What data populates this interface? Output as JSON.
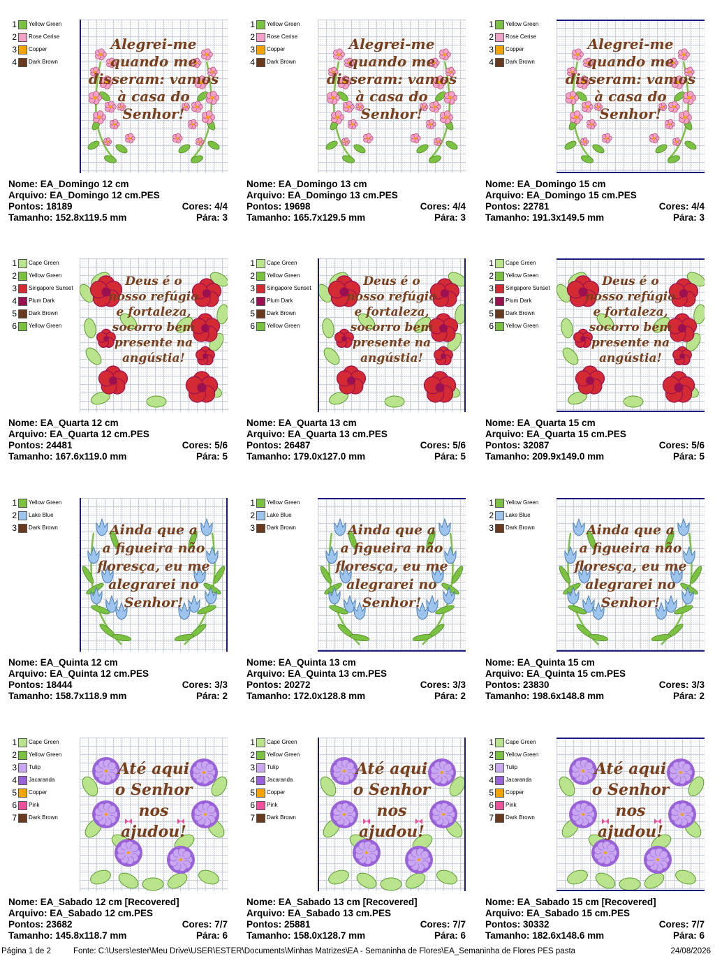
{
  "colors": {
    "Yellow Green": "#7cc242",
    "Rose Cerise": "#f2a2c6",
    "Copper": "#f5a300",
    "Dark Brown": "#6a3a1f",
    "Cape Green": "#b9e38d",
    "Singapore Sunset": "#d42a34",
    "Plum Dark": "#9b1050",
    "Lake Blue": "#9cc4ec",
    "Tulip": "#c9a6f0",
    "Jacaranda": "#9a62d9",
    "Pink": "#f0509c"
  },
  "labels": {
    "nome": "Nome: ",
    "arquivo": "Arquivo: ",
    "pontos": "Pontos: ",
    "tamanho": "Tamanho: ",
    "cores": "Cores: ",
    "para": "Pára: "
  },
  "rows": [
    {
      "theme": "roses",
      "verse": [
        "Alegrei-me",
        "quando me",
        "disseram: vamos",
        "à casa do",
        "Senhor!"
      ],
      "palette": [
        "Yellow Green",
        "Rose Cerise",
        "Copper",
        "Dark Brown"
      ],
      "items": [
        {
          "nome": "EA_Domingo 12 cm",
          "arquivo": "EA_Domingo 12 cm.PES",
          "pontos": "18189",
          "cores": "4/4",
          "tamanho": "152.8x119.5 mm",
          "para": "3"
        },
        {
          "nome": "EA_Domingo 13 cm",
          "arquivo": "EA_Domingo 13 cm.PES",
          "pontos": "19698",
          "cores": "4/4",
          "tamanho": "165.7x129.5 mm",
          "para": "3"
        },
        {
          "nome": "EA_Domingo 15 cm",
          "arquivo": "EA_Domingo 15 cm.PES",
          "pontos": "22781",
          "cores": "4/4",
          "tamanho": "191.3x149.5 mm",
          "para": "3"
        }
      ]
    },
    {
      "theme": "hibiscus",
      "verse": [
        "Deus é o",
        "nosso refúgio",
        "e fortaleza,",
        "socorro bem",
        "presente na",
        "angústia!"
      ],
      "palette": [
        "Cape Green",
        "Yellow Green",
        "Singapore Sunset",
        "Plum Dark",
        "Dark Brown",
        "Yellow Green"
      ],
      "items": [
        {
          "nome": "EA_Quarta 12 cm",
          "arquivo": "EA_Quarta 12 cm.PES",
          "pontos": "24481",
          "cores": "5/6",
          "tamanho": "167.6x119.0 mm",
          "para": "5"
        },
        {
          "nome": "EA_Quarta 13 cm",
          "arquivo": "EA_Quarta 13 cm.PES",
          "pontos": "26487",
          "cores": "5/6",
          "tamanho": "179.0x127.0 mm",
          "para": "5"
        },
        {
          "nome": "EA_Quarta 15 cm",
          "arquivo": "EA_Quarta 15 cm.PES",
          "pontos": "32087",
          "cores": "5/6",
          "tamanho": "209.9x149.0 mm",
          "para": "5"
        }
      ]
    },
    {
      "theme": "tulips",
      "verse": [
        "Ainda que a",
        "a figueira não",
        "floresça, eu me",
        "alegrarei no",
        "Senhor!"
      ],
      "palette": [
        "Yellow Green",
        "Lake Blue",
        "Dark Brown"
      ],
      "items": [
        {
          "nome": "EA_Quinta 12 cm",
          "arquivo": "EA_Quinta 12 cm.PES",
          "pontos": "18444",
          "cores": "3/3",
          "tamanho": "158.7x118.9 mm",
          "para": "2"
        },
        {
          "nome": "EA_Quinta 13 cm",
          "arquivo": "EA_Quinta 13 cm.PES",
          "pontos": "20272",
          "cores": "3/3",
          "tamanho": "172.0x128.8 mm",
          "para": "2"
        },
        {
          "nome": "EA_Quinta 15 cm",
          "arquivo": "EA_Quinta 15 cm.PES",
          "pontos": "23830",
          "cores": "3/3",
          "tamanho": "198.6x148.8 mm",
          "para": "2"
        }
      ]
    },
    {
      "theme": "hydrangea",
      "verse": [
        "Até aqui",
        "o Senhor",
        "nos",
        "ajudou!"
      ],
      "palette": [
        "Cape Green",
        "Yellow Green",
        "Tulip",
        "Jacaranda",
        "Copper",
        "Pink",
        "Dark Brown"
      ],
      "items": [
        {
          "nome": "EA_Sabado 12 cm [Recovered]",
          "arquivo": "EA_Sabado 12 cm.PES",
          "pontos": "23682",
          "cores": "7/7",
          "tamanho": "145.8x118.7 mm",
          "para": "6"
        },
        {
          "nome": "EA_Sabado 13 cm [Recovered]",
          "arquivo": "EA_Sabado 13 cm.PES",
          "pontos": "25881",
          "cores": "7/7",
          "tamanho": "158.0x128.7 mm",
          "para": "6"
        },
        {
          "nome": "EA_Sabado 15 cm [Recovered]",
          "arquivo": "EA_Sabado 15 cm.PES",
          "pontos": "30332",
          "cores": "7/7",
          "tamanho": "182.6x148.6 mm",
          "para": "6"
        }
      ]
    }
  ],
  "footer": {
    "page": "Página 1 de 2",
    "source": "Fonte: C:\\Users\\ester\\Meu Drive\\USER\\ESTER\\Documents\\Minhas Matrizes\\EA - Semaninha de Flores\\EA_Semaninha de Flores PES pasta",
    "date": "24/08/2026"
  }
}
